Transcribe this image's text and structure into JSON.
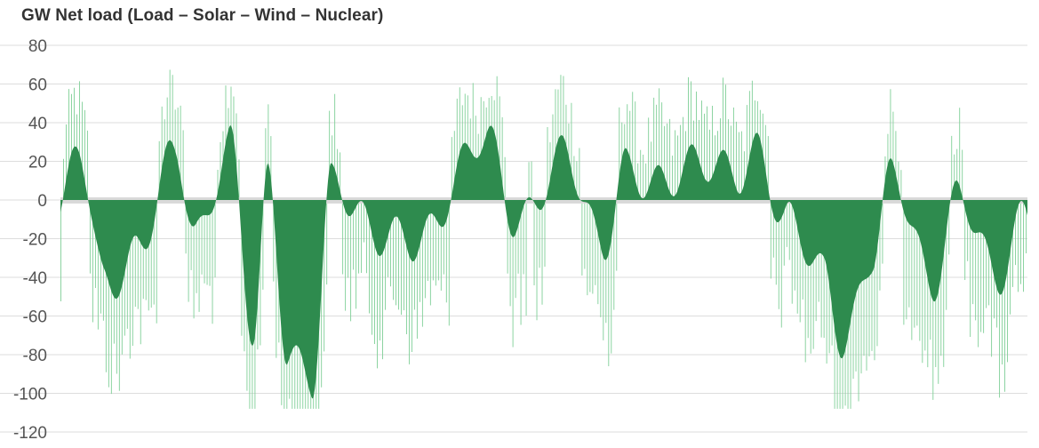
{
  "chart_data": {
    "type": "area",
    "title": "GW Net load (Load – Solar – Wind – Nuclear)",
    "xlabel": "",
    "ylabel": "",
    "ylim": [
      -120,
      80
    ],
    "y_ticks": [
      80,
      60,
      40,
      20,
      0,
      -20,
      -40,
      -60,
      -80,
      -100,
      -120
    ],
    "grid": true,
    "legend": "none",
    "colors": {
      "area": "#2e8b4e",
      "spikes": "#7fcf97",
      "zero_band": "#d9d9d9",
      "grid": "#dddddd",
      "text": "#555555"
    },
    "series": [
      {
        "n_points": 1092,
        "envelope_x": [
          0,
          0.02,
          0.045,
          0.08,
          0.12,
          0.14,
          0.175,
          0.2,
          0.215,
          0.235,
          0.26,
          0.28,
          0.33,
          0.36,
          0.44,
          0.47,
          0.52,
          0.56,
          0.585,
          0.63,
          0.67,
          0.7,
          0.72,
          0.75,
          0.79,
          0.81,
          0.84,
          0.86,
          0.9,
          0.93,
          0.97,
          1.0
        ],
        "envelope_y": [
          -12,
          25,
          -40,
          -25,
          20,
          -20,
          35,
          -70,
          5,
          -85,
          -90,
          15,
          -25,
          -20,
          28,
          -10,
          25,
          -30,
          20,
          10,
          15,
          18,
          30,
          -15,
          -40,
          -70,
          -25,
          10,
          -45,
          10,
          -45,
          -10
        ]
      }
    ]
  }
}
